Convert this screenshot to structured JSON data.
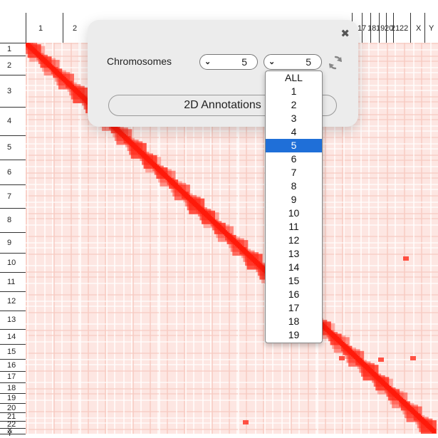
{
  "axis": {
    "top_labels": [
      "1",
      "2",
      "17",
      "18",
      "19",
      "20",
      "21",
      "22",
      "X",
      "Y"
    ],
    "left_labels": [
      "1",
      "2",
      "3",
      "4",
      "5",
      "6",
      "7",
      "8",
      "9",
      "10",
      "11",
      "12",
      "13",
      "14",
      "15",
      "16",
      "17",
      "18",
      "19",
      "20",
      "21",
      "22",
      "X",
      "Y"
    ]
  },
  "heatmap": {
    "description_color": "#ff2a1a"
  },
  "panel": {
    "close_icon": "close-icon",
    "label": "Chromosomes",
    "select_a_value": "5",
    "select_b_value": "5",
    "refresh_icon": "refresh-icon",
    "annotations_button": "2D Annotations"
  },
  "dropdown": {
    "options": [
      "ALL",
      "1",
      "2",
      "3",
      "4",
      "5",
      "6",
      "7",
      "8",
      "9",
      "10",
      "11",
      "12",
      "13",
      "14",
      "15",
      "16",
      "17",
      "18",
      "19"
    ],
    "selected": "5",
    "selected_color": "#1f6fd8"
  }
}
